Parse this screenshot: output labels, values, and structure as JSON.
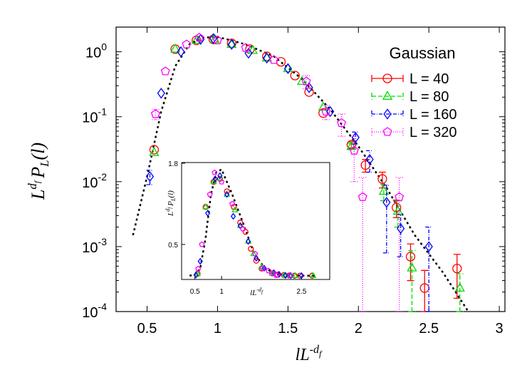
{
  "chart_data": {
    "type": "scatter",
    "log_y": true,
    "x_label": [
      "lL",
      "-d",
      "f"
    ],
    "y_label": [
      "L",
      "d",
      "f",
      "P",
      "L",
      "(l)"
    ],
    "legend_title": "Gaussian",
    "legend_position": "upper right",
    "xlim": [
      0.28,
      3.04
    ],
    "ylim": [
      0.0001,
      2.4
    ],
    "xticks": [
      0.5,
      1,
      1.5,
      2,
      2.5,
      3
    ],
    "yticks": [
      {
        "value": 0.0001,
        "label": "10",
        "exponent": "-4"
      },
      {
        "value": 0.001,
        "label": "10",
        "exponent": "-3"
      },
      {
        "value": 0.01,
        "label": "10",
        "exponent": "-2"
      },
      {
        "value": 0.1,
        "label": "10",
        "exponent": "-1"
      },
      {
        "value": 1,
        "label": "10",
        "exponent": "0"
      }
    ],
    "series": [
      {
        "name": "L = 40",
        "color": "#ff0000",
        "marker": "circle",
        "dash": "none",
        "x": [
          0.55,
          0.7,
          0.85,
          0.97,
          1.1,
          1.23,
          1.35,
          1.45,
          1.55,
          1.65,
          1.75,
          1.95,
          2.05,
          2.17,
          2.27,
          2.37,
          2.47,
          2.7
        ],
        "values": [
          0.031,
          1.1,
          1.5,
          1.55,
          1.35,
          1.1,
          0.85,
          0.7,
          0.43,
          0.24,
          0.114,
          0.037,
          0.018,
          0.011,
          0.004,
          0.0007,
          0.00023,
          0.00046
        ],
        "errors": [
          null,
          null,
          null,
          null,
          null,
          null,
          null,
          null,
          null,
          null,
          null,
          0.004,
          0.004,
          0.003,
          0.0012,
          0.0004,
          0.0002,
          0.0003
        ]
      },
      {
        "name": "L = 80",
        "color": "#00dd00",
        "marker": "triangle",
        "dash": "6,3",
        "x": [
          0.55,
          0.7,
          0.85,
          0.98,
          1.1,
          1.25,
          1.35,
          1.5,
          1.6,
          1.75,
          1.95,
          2.18,
          2.28,
          2.38,
          2.72
        ],
        "values": [
          0.028,
          1.1,
          1.5,
          1.55,
          1.3,
          1.05,
          0.8,
          0.55,
          0.35,
          0.14,
          0.035,
          0.0071,
          0.0035,
          0.00047,
          0.00023
        ],
        "errors": [
          null,
          null,
          null,
          null,
          null,
          null,
          null,
          null,
          null,
          null,
          0.004,
          0.002,
          0.0015,
          0.0004,
          0.00015
        ]
      },
      {
        "name": "L = 160",
        "color": "#0000ff",
        "marker": "diamond",
        "dash": "5,2,1,2",
        "x": [
          0.52,
          0.6,
          0.74,
          0.88,
          0.97,
          1.1,
          1.22,
          1.35,
          1.5,
          1.65,
          1.8,
          1.98,
          2.08,
          2.2,
          2.3,
          2.5
        ],
        "values": [
          0.012,
          0.23,
          1.0,
          1.55,
          1.6,
          1.3,
          0.95,
          0.8,
          0.55,
          0.28,
          0.12,
          0.048,
          0.022,
          0.0048,
          0.0019,
          0.001
        ],
        "errors": [
          0.003,
          null,
          null,
          null,
          null,
          null,
          null,
          null,
          null,
          null,
          null,
          0.01,
          0.008,
          0.004,
          0.0012,
          0.001
        ]
      },
      {
        "name": "L = 320",
        "color": "#ff00ff",
        "marker": "pentagon",
        "dash": "1,2",
        "x": [
          0.56,
          0.63,
          0.78,
          0.87,
          1.0,
          1.2,
          1.4,
          1.63,
          1.77,
          1.88,
          1.97,
          2.03,
          2.29
        ],
        "values": [
          0.11,
          0.5,
          1.3,
          1.65,
          1.5,
          1.15,
          0.75,
          0.35,
          0.12,
          0.08,
          0.03,
          0.0058,
          0.0058
        ],
        "errors": [
          0.02,
          null,
          null,
          null,
          null,
          null,
          null,
          0.08,
          0.03,
          0.03,
          0.02,
          0.0058,
          0.0058
        ]
      }
    ],
    "fit_curve": {
      "color": "#000000",
      "x": [
        0.4,
        0.5,
        0.6,
        0.7,
        0.8,
        0.9,
        1.0,
        1.2,
        1.4,
        1.6,
        1.8,
        2.0,
        2.2,
        2.4,
        2.6,
        2.78
      ],
      "values": [
        0.0015,
        0.012,
        0.12,
        0.6,
        1.3,
        1.65,
        1.7,
        1.3,
        0.85,
        0.38,
        0.13,
        0.035,
        0.008,
        0.0015,
        0.0004,
        0.0001
      ]
    },
    "inset": {
      "xlim": [
        0.25,
        3.03
      ],
      "ylim": [
        -0.06,
        1.81
      ],
      "xticks": [
        0.5,
        1,
        2.5
      ],
      "yticks": [
        0.5,
        1.8
      ],
      "x_label": [
        "lL",
        "-d",
        "f"
      ],
      "y_label": [
        "L",
        "d",
        "f",
        "P",
        "L",
        "(l)"
      ]
    }
  }
}
